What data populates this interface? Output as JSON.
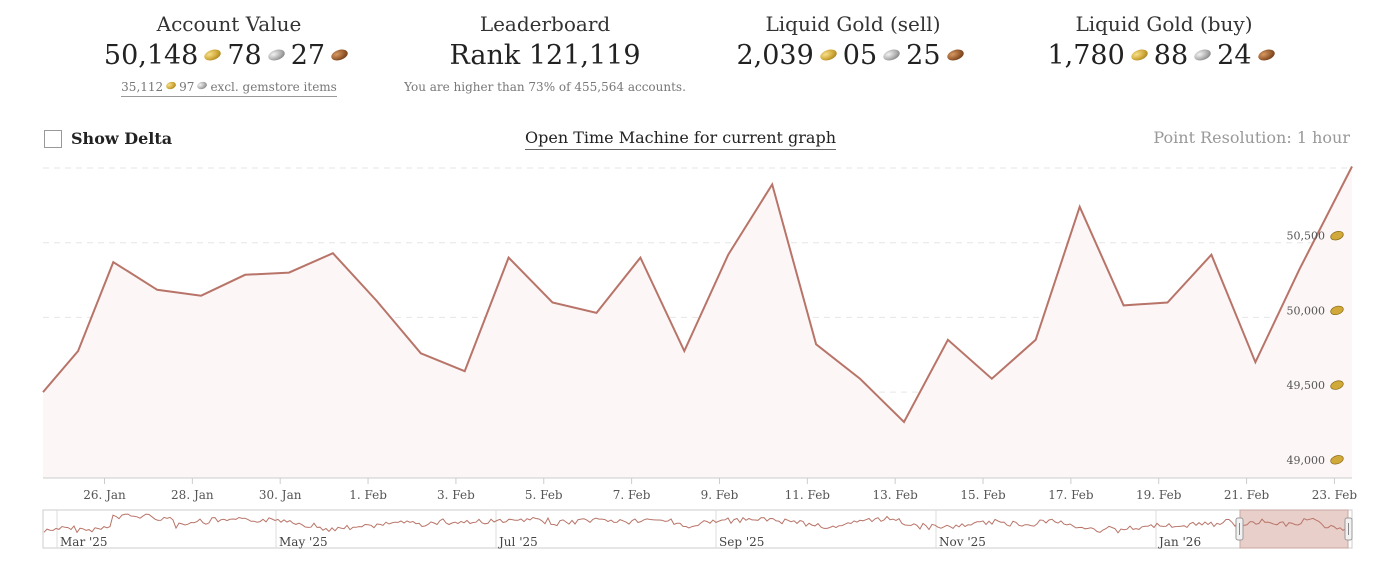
{
  "stats": {
    "account_value": {
      "title": "Account Value",
      "gold": "50,148",
      "silver": "78",
      "copper": "27",
      "sub_gold": "35,112",
      "sub_silver": "97",
      "sub_text": "excl. gemstore items"
    },
    "leaderboard": {
      "title": "Leaderboard",
      "rank": "Rank 121,119",
      "sub_text": "You are higher than 73% of 455,564 accounts."
    },
    "liquid_sell": {
      "title": "Liquid Gold (sell)",
      "gold": "2,039",
      "silver": "05",
      "copper": "25"
    },
    "liquid_buy": {
      "title": "Liquid Gold (buy)",
      "gold": "1,780",
      "silver": "88",
      "copper": "24"
    }
  },
  "controls": {
    "show_delta_label": "Show Delta",
    "time_machine_label": "Open Time Machine for current graph",
    "resolution_label": "Point Resolution: 1 hour"
  },
  "colors": {
    "line": "#b87468",
    "area": "#fcf6f6",
    "grid": "#e6e6e6",
    "navigator_selection": "#e9cfca"
  },
  "chart_data": {
    "type": "area",
    "x_labels": [
      "26. Jan",
      "28. Jan",
      "30. Jan",
      "1. Feb",
      "3. Feb",
      "5. Feb",
      "7. Feb",
      "9. Feb",
      "11. Feb",
      "13. Feb",
      "15. Feb",
      "17. Feb",
      "19. Feb",
      "21. Feb",
      "23. Feb"
    ],
    "y_ticks": [
      "49,000",
      "49,500",
      "50,000",
      "50,500"
    ],
    "y_tick_values": [
      49000,
      49500,
      50000,
      50500
    ],
    "ylim": [
      48925,
      51000
    ],
    "x_range": [
      24.6,
      54.4
    ],
    "x_tick_days": [
      26,
      28,
      30,
      32,
      34,
      36,
      38,
      40,
      42,
      44,
      46,
      48,
      50,
      52,
      54
    ],
    "series": [
      {
        "x": [
          24.6,
          25.4,
          26.2,
          27.2,
          28.2,
          29.2,
          30.2,
          31.2,
          32.2,
          33.2,
          34.2,
          35.2,
          36.2,
          37.2,
          38.2,
          39.2,
          40.2,
          41.2,
          42.2,
          43.2,
          44.2,
          45.2,
          46.2,
          47.2,
          48.2,
          49.2,
          50.2,
          51.2,
          52.2,
          53.2,
          54.4
        ],
        "y": [
          49500,
          49775,
          50370,
          50185,
          50145,
          50285,
          50300,
          50430,
          50110,
          49760,
          49640,
          50400,
          50100,
          50030,
          50400,
          49775,
          50420,
          50890,
          49820,
          49590,
          49300,
          49850,
          49590,
          49850,
          50740,
          50080,
          50100,
          50420,
          49700,
          50320,
          51010
        ]
      }
    ]
  },
  "navigator": {
    "labels": [
      "Mar '25",
      "May '25",
      "Jul '25",
      "Sep '25",
      "Nov '25",
      "Jan '26"
    ]
  }
}
